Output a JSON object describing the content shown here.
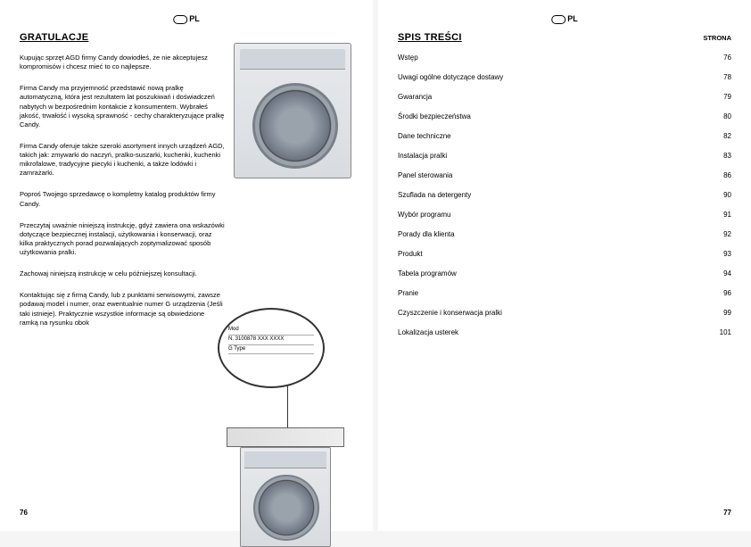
{
  "left": {
    "lang": "PL",
    "title": "GRATULACJE",
    "p1": "Kupując sprzęt AGD firmy Candy dowiodłeś, że nie akceptujesz kompromisów i chcesz mieć to co najlepsze.",
    "p2": "Firma Candy ma przyjemność przedstawić nową pralkę automatyczną, która jest rezultatem lat poszukiwań i doświadczeń nabytych w bezpośrednim kontakcie z konsumentem. Wybrałeś jakość, trwałość i wysoką sprawność - cechy charakteryzujące pralkę Candy.",
    "p3": "Firma Candy oferuje także szeroki asortyment innych urządzeń AGD, takich jak: zmywarki do naczyń, pralko-suszarki, kuchenki, kuchenki mikrofalowe, tradycyjne piecyki i kuchenki, a także lodówki i zamrażarki.",
    "p4": "Poproś Twojego sprzedawcę o kompletny katalog produktów firmy Candy.",
    "p5": "Przeczytaj uważnie niniejszą instrukcję, gdyż zawiera ona wskazówki dotyczące bezpiecznej instalacji, użytkowania i konserwacji, oraz kilka praktycznych porad pozwalających zoptymalizować sposób użytkowania pralki.",
    "p6": "Zachowaj niniejszą instrukcję w celu późniejszej konsultacji.",
    "p7": "Kontaktując się z firmą Candy, lub z punktami serwisowymi, zawsze podawaj model i numer, oraz ewentualnie numer G urządzenia (Jeśli taki istnieje). Praktycznie wszystkie informacje są obwiedzione ramką na rysunku obok",
    "label": {
      "l1": "Mod",
      "l2": "N. 3100878 XXX  XXXX",
      "l3": "G    Type"
    },
    "pageNum": "76"
  },
  "right": {
    "lang": "PL",
    "title": "SPIS TREŚCI",
    "stronaLabel": "STRONA",
    "toc": [
      {
        "t": "Wstęp",
        "p": "76"
      },
      {
        "t": "Uwagi ogólne dotyczące dostawy",
        "p": "78"
      },
      {
        "t": "Gwarancja",
        "p": "79"
      },
      {
        "t": "Środki bezpieczeństwa",
        "p": "80"
      },
      {
        "t": "Dane techniczne",
        "p": "82"
      },
      {
        "t": "Instalacja pralki",
        "p": "83"
      },
      {
        "t": "Panel sterowania",
        "p": "86"
      },
      {
        "t": "Szuflada na detergenty",
        "p": "90"
      },
      {
        "t": "Wybór programu",
        "p": "91"
      },
      {
        "t": "Porady dla klienta",
        "p": "92"
      },
      {
        "t": "Produkt",
        "p": "93"
      },
      {
        "t": "Tabela programów",
        "p": "94"
      },
      {
        "t": "Pranie",
        "p": "96"
      },
      {
        "t": "Czyszczenie i konserwacja pralki",
        "p": "99"
      },
      {
        "t": "Lokalizacja usterek",
        "p": "101"
      }
    ],
    "pageNum": "77"
  }
}
